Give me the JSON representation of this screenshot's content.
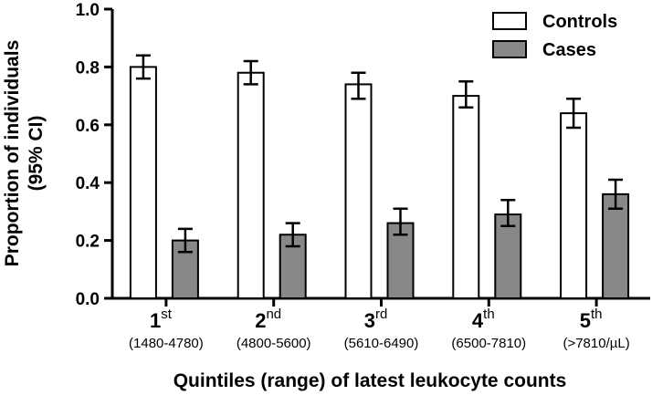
{
  "chart_data": {
    "type": "bar",
    "title": "",
    "xlabel": "Quintiles (range) of latest leukocyte counts",
    "ylabel": "Proportion of individuals (95% CI)",
    "ylabel_lines": [
      "Proportion of individuals",
      "(95% CI)"
    ],
    "ylim": [
      0,
      1.0
    ],
    "yticks": [
      "0.0",
      "0.2",
      "0.4",
      "0.6",
      "0.8",
      "1.0"
    ],
    "legend_position": "top-right",
    "categories": [
      {
        "main": "1",
        "sup": "st",
        "range": "(1480-4780)"
      },
      {
        "main": "2",
        "sup": "nd",
        "range": "(4800-5600)"
      },
      {
        "main": "3",
        "sup": "rd",
        "range": "(5610-6490)"
      },
      {
        "main": "4",
        "sup": "th",
        "range": "(6500-7810)"
      },
      {
        "main": "5",
        "sup": "th",
        "range": "(>7810/µL)"
      }
    ],
    "series": [
      {
        "name": "Controls",
        "color": "#ffffff",
        "values": [
          0.8,
          0.78,
          0.74,
          0.7,
          0.64
        ],
        "ci_low": [
          0.76,
          0.74,
          0.69,
          0.66,
          0.59
        ],
        "ci_high": [
          0.84,
          0.82,
          0.78,
          0.75,
          0.69
        ]
      },
      {
        "name": "Cases",
        "color": "#888888",
        "values": [
          0.2,
          0.22,
          0.26,
          0.29,
          0.36
        ],
        "ci_low": [
          0.16,
          0.18,
          0.22,
          0.25,
          0.31
        ],
        "ci_high": [
          0.24,
          0.26,
          0.31,
          0.34,
          0.41
        ]
      }
    ]
  }
}
